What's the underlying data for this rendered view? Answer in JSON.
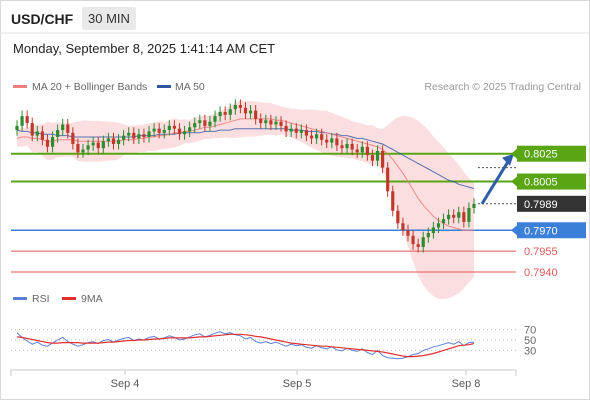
{
  "header": {
    "symbol": "USD/CHF",
    "timeframe": "30 MIN",
    "datetime": "Monday, September 8, 2025 1:41:14 AM CET"
  },
  "legend": {
    "ma20_label": "MA 20 + Bollinger Bands",
    "ma50_label": "MA 50",
    "rsi_label": "RSI",
    "ma9_label": "9MA",
    "copyright": "Research © 2025 Trading Central"
  },
  "colors": {
    "ma20": "#f08080",
    "ma50": "#2f55a4",
    "bollinger_fill": "#fadadd",
    "bull_candle": "#2e8b2e",
    "bear_candle": "#c0392b",
    "resistance": "#5aa514",
    "pivot": "#3b7fd9",
    "support": "#e05a5a",
    "current_price_bg": "#333333",
    "rsi_line": "#5b7fd9",
    "rsi_ma": "#e03030",
    "arrow": "#2f5fa8"
  },
  "chart_data": [
    {
      "type": "candlestick",
      "title": "USD/CHF 30 MIN",
      "x_tick_labels": [
        "Sep 4",
        "Sep 5",
        "Sep 8"
      ],
      "price_levels": [
        {
          "value": 0.8025,
          "label": "0.8025",
          "kind": "resistance"
        },
        {
          "value": 0.8005,
          "label": "0.8005",
          "kind": "resistance"
        },
        {
          "value": 0.7989,
          "label": "0.7989",
          "kind": "current"
        },
        {
          "value": 0.797,
          "label": "0.7970",
          "kind": "pivot"
        },
        {
          "value": 0.7955,
          "label": "0.7955",
          "kind": "support"
        },
        {
          "value": 0.794,
          "label": "0.7940",
          "kind": "support"
        }
      ],
      "close_series": [
        0.8045,
        0.8052,
        0.8047,
        0.8038,
        0.8041,
        0.8035,
        0.803,
        0.8037,
        0.8042,
        0.8046,
        0.804,
        0.8032,
        0.8026,
        0.8028,
        0.8031,
        0.8033,
        0.8029,
        0.8034,
        0.8036,
        0.8032,
        0.8035,
        0.8038,
        0.804,
        0.8036,
        0.8039,
        0.8037,
        0.8041,
        0.8043,
        0.804,
        0.8042,
        0.8045,
        0.8043,
        0.8039,
        0.8041,
        0.8044,
        0.8047,
        0.8049,
        0.8045,
        0.8048,
        0.8052,
        0.8055,
        0.8053,
        0.8057,
        0.806,
        0.8058,
        0.8054,
        0.8056,
        0.805,
        0.8047,
        0.8049,
        0.8046,
        0.8048,
        0.8045,
        0.8041,
        0.8043,
        0.804,
        0.8042,
        0.8038,
        0.8036,
        0.8039,
        0.8035,
        0.8033,
        0.8036,
        0.8031,
        0.8029,
        0.8032,
        0.8028,
        0.8026,
        0.803,
        0.8024,
        0.802,
        0.8027,
        0.8015,
        0.7998,
        0.7984,
        0.7975,
        0.797,
        0.7966,
        0.796,
        0.7958,
        0.7965,
        0.7968,
        0.7972,
        0.7975,
        0.7978,
        0.7981,
        0.7979,
        0.7983,
        0.7976,
        0.7986,
        0.7989
      ],
      "ma20_series": [
        0.8036,
        0.8037,
        0.8037,
        0.8036,
        0.8036,
        0.8035,
        0.8034,
        0.8034,
        0.8035,
        0.8035,
        0.8035,
        0.8035,
        0.8034,
        0.8034,
        0.8034,
        0.8034,
        0.8034,
        0.8034,
        0.8034,
        0.8034,
        0.8034,
        0.8035,
        0.8035,
        0.8035,
        0.8036,
        0.8036,
        0.8037,
        0.8037,
        0.8038,
        0.8038,
        0.8039,
        0.804,
        0.804,
        0.8041,
        0.8041,
        0.8042,
        0.8043,
        0.8044,
        0.8044,
        0.8045,
        0.8046,
        0.8047,
        0.8048,
        0.8049,
        0.805,
        0.805,
        0.805,
        0.805,
        0.805,
        0.805,
        0.805,
        0.8049,
        0.8049,
        0.8048,
        0.8047,
        0.8046,
        0.8045,
        0.8044,
        0.8043,
        0.8042,
        0.8041,
        0.804,
        0.8039,
        0.8038,
        0.8037,
        0.8036,
        0.8035,
        0.8034,
        0.8033,
        0.8032,
        0.8031,
        0.803,
        0.8028,
        0.8025,
        0.8021,
        0.8016,
        0.8011,
        0.8005,
        0.7999,
        0.7993,
        0.7988,
        0.7984,
        0.798,
        0.7977,
        0.7975,
        0.7973,
        0.7972,
        0.7971,
        0.797,
        0.797,
        0.797
      ],
      "ma50_series": [
        0.8042,
        0.8041,
        0.8041,
        0.804,
        0.804,
        0.8039,
        0.8039,
        0.8039,
        0.8038,
        0.8038,
        0.8038,
        0.8037,
        0.8037,
        0.8037,
        0.8037,
        0.8037,
        0.8037,
        0.8037,
        0.8037,
        0.8037,
        0.8037,
        0.8037,
        0.8037,
        0.8037,
        0.8038,
        0.8038,
        0.8038,
        0.8038,
        0.8039,
        0.8039,
        0.8039,
        0.8039,
        0.804,
        0.804,
        0.804,
        0.804,
        0.804,
        0.8041,
        0.8041,
        0.8041,
        0.8042,
        0.8042,
        0.8042,
        0.8043,
        0.8043,
        0.8043,
        0.8043,
        0.8043,
        0.8043,
        0.8043,
        0.8043,
        0.8043,
        0.8043,
        0.8043,
        0.8042,
        0.8042,
        0.8042,
        0.8041,
        0.8041,
        0.8041,
        0.804,
        0.804,
        0.8039,
        0.8039,
        0.8038,
        0.8038,
        0.8037,
        0.8036,
        0.8036,
        0.8035,
        0.8034,
        0.8033,
        0.8032,
        0.803,
        0.8028,
        0.8026,
        0.8024,
        0.8022,
        0.802,
        0.8018,
        0.8016,
        0.8014,
        0.8012,
        0.801,
        0.8008,
        0.8006,
        0.8005,
        0.8003,
        0.8002,
        0.8001,
        0.8
      ]
    },
    {
      "type": "line",
      "title": "RSI",
      "y_ticks": [
        30,
        50,
        70
      ],
      "rsi_series": [
        64,
        55,
        48,
        42,
        46,
        40,
        38,
        44,
        50,
        55,
        47,
        42,
        38,
        41,
        45,
        47,
        43,
        49,
        51,
        46,
        50,
        53,
        55,
        49,
        52,
        50,
        55,
        57,
        52,
        54,
        58,
        55,
        50,
        52,
        56,
        60,
        62,
        56,
        59,
        63,
        66,
        62,
        64,
        60,
        58,
        52,
        55,
        47,
        44,
        47,
        43,
        46,
        42,
        38,
        42,
        39,
        41,
        36,
        34,
        39,
        35,
        33,
        37,
        31,
        29,
        34,
        30,
        28,
        33,
        26,
        22,
        30,
        20,
        16,
        15,
        14,
        15,
        18,
        22,
        24,
        30,
        33,
        37,
        39,
        42,
        45,
        42,
        47,
        39,
        45,
        46
      ],
      "rsi_ma_series": [
        56,
        55,
        53,
        51,
        49,
        47,
        45,
        44,
        44,
        45,
        45,
        45,
        45,
        44,
        44,
        44,
        44,
        45,
        46,
        46,
        47,
        48,
        49,
        49,
        50,
        50,
        51,
        52,
        52,
        53,
        54,
        54,
        54,
        54,
        54,
        55,
        56,
        56,
        57,
        58,
        59,
        60,
        61,
        61,
        61,
        60,
        59,
        57,
        56,
        54,
        52,
        50,
        48,
        46,
        44,
        43,
        42,
        41,
        40,
        39,
        38,
        38,
        37,
        36,
        35,
        34,
        33,
        32,
        31,
        30,
        29,
        28,
        27,
        25,
        23,
        21,
        19,
        18,
        18,
        19,
        20,
        22,
        24,
        27,
        30,
        33,
        36,
        39,
        40,
        41,
        43
      ]
    }
  ]
}
